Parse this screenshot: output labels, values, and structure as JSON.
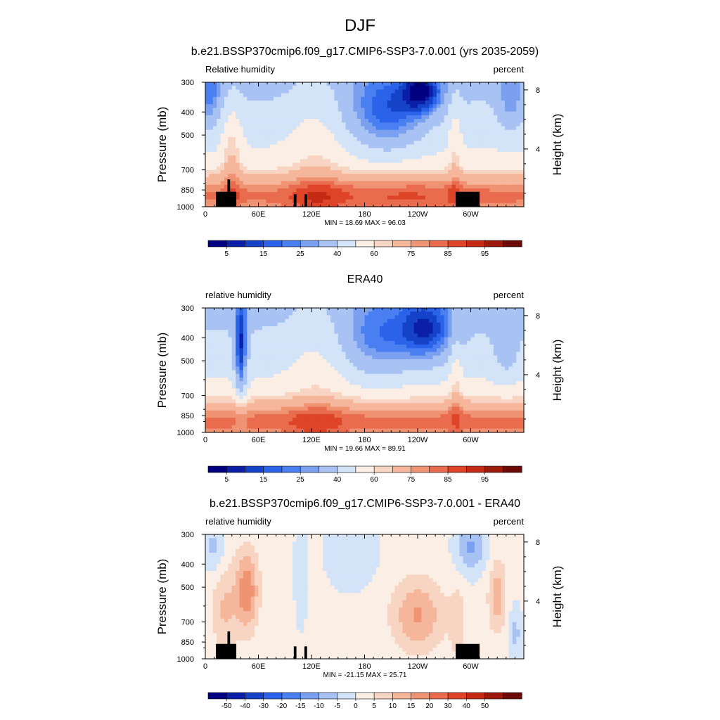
{
  "figure": {
    "title": "DJF"
  },
  "colorbars": {
    "absolute": {
      "colors": [
        "#000080",
        "#0a1fa6",
        "#1443c8",
        "#2b62ea",
        "#4a7ff2",
        "#7aa0ef",
        "#a8c3f3",
        "#d3e3f8",
        "#fbeee4",
        "#f8d5c2",
        "#f5b69b",
        "#ef9373",
        "#e96c4f",
        "#de4428",
        "#c42a14",
        "#9c1a0c",
        "#6e0a05"
      ],
      "labels": [
        "5",
        "15",
        "25",
        "40",
        "60",
        "75",
        "85",
        "95"
      ]
    },
    "difference": {
      "colors": [
        "#000080",
        "#0a1fa6",
        "#1443c8",
        "#2b62ea",
        "#4a7ff2",
        "#7aa0ef",
        "#a8c3f3",
        "#d3e3f8",
        "#fbeee4",
        "#f8d5c2",
        "#f5b69b",
        "#ef9373",
        "#e96c4f",
        "#de4428",
        "#c42a14",
        "#9c1a0c",
        "#6e0a05"
      ],
      "labels": [
        "-50",
        "-40",
        "-30",
        "-20",
        "-15",
        "-10",
        "-5",
        "0",
        "5",
        "10",
        "15",
        "20",
        "30",
        "40",
        "50"
      ]
    }
  },
  "chart_data": [
    {
      "type": "heatmap",
      "title": "b.e21.BSSP370cmip6.f09_g17.CMIP6-SSP3-7.0.001 (yrs 2035-2059)",
      "variable": "Relative humidity",
      "units": "percent",
      "ylabel": "Pressure (mb)",
      "y2label": "Height (km)",
      "xticks": [
        "0",
        "60E",
        "120E",
        "180",
        "120W",
        "60W"
      ],
      "yticks": [
        "300",
        "400",
        "500",
        "700",
        "850",
        "1000"
      ],
      "y2ticks": [
        "8",
        "4"
      ],
      "x_range": [
        0,
        360
      ],
      "pressure_range": [
        1000,
        300
      ],
      "stats": "MIN =  18.69  MAX =  96.03",
      "colorbar": "absolute"
    },
    {
      "type": "heatmap",
      "title": "ERA40",
      "variable": "relative humidity",
      "units": "percent",
      "ylabel": "Pressure (mb)",
      "y2label": "Height (km)",
      "xticks": [
        "0",
        "60E",
        "120E",
        "180",
        "120W",
        "60W"
      ],
      "yticks": [
        "300",
        "400",
        "500",
        "700",
        "850",
        "1000"
      ],
      "y2ticks": [
        "8",
        "4"
      ],
      "x_range": [
        0,
        360
      ],
      "pressure_range": [
        1000,
        300
      ],
      "stats": "MIN =  19.66  MAX =  89.91",
      "colorbar": "absolute"
    },
    {
      "type": "heatmap",
      "title": "b.e21.BSSP370cmip6.f09_g17.CMIP6-SSP3-7.0.001 - ERA40",
      "variable": "relative humidity",
      "units": "percent",
      "ylabel": "Pressure (mb)",
      "y2label": "Height (km)",
      "xticks": [
        "0",
        "60E",
        "120E",
        "180",
        "120W",
        "60W"
      ],
      "yticks": [
        "300",
        "400",
        "500",
        "700",
        "850",
        "1000"
      ],
      "y2ticks": [
        "8",
        "4"
      ],
      "x_range": [
        0,
        360
      ],
      "pressure_range": [
        1000,
        300
      ],
      "stats": "MIN = -21.15  MAX =  25.71",
      "colorbar": "difference"
    }
  ]
}
